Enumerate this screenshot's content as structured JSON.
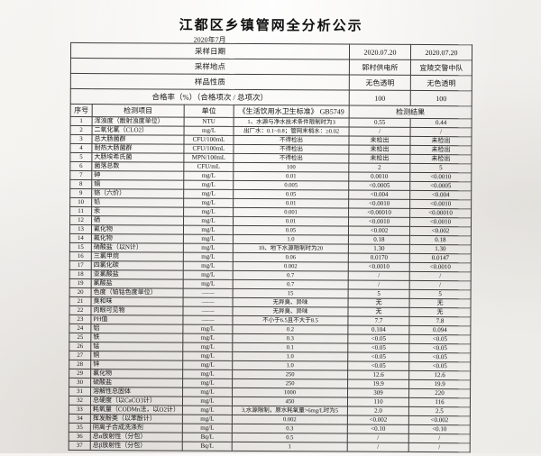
{
  "document": {
    "title": "江都区乡镇管网全分析公示",
    "subtitle": "2020年7月"
  },
  "info": {
    "rows": [
      {
        "label": "采样日期",
        "v1": "2020.07.20",
        "v2": "2020.07.20"
      },
      {
        "label": "采样地点",
        "v1": "郭村供电所",
        "v2": "宜陵交警中队"
      },
      {
        "label": "样品性质",
        "v1": "无色透明",
        "v2": "无色透明"
      },
      {
        "label": "合格率（%）（合格项次 / 总项次）",
        "v1": "100",
        "v2": "100"
      }
    ]
  },
  "table": {
    "columns": {
      "no": "序号",
      "item": "检测项目",
      "unit": "单位",
      "standard": "《生活饮用水卫生标准》 GB5749",
      "result": "检测结果"
    },
    "rows": [
      [
        "1",
        "浑浊度（散射浊度单位）",
        "NTU",
        "1、水源与净水技术条件限制时为3",
        "0.55",
        "0.44"
      ],
      [
        "2",
        "二氧化氯（CLO2）",
        "mg/L",
        "出厂水：0.1~0.8；管网末梢水：≥0.02",
        "/",
        "/"
      ],
      [
        "3",
        "总大肠菌群",
        "CFU/100mL",
        "不得检出",
        "未检出",
        "未检出"
      ],
      [
        "4",
        "耐热大肠菌群",
        "CFU/100mL",
        "不得检出",
        "未检出",
        "未检出"
      ],
      [
        "5",
        "大肠埃希氏菌",
        "MPN/100mL",
        "不得检出",
        "未检出",
        "未检出"
      ],
      [
        "6",
        "菌落总数",
        "CFU/mL",
        "100",
        "2",
        "5"
      ],
      [
        "7",
        "砷",
        "mg/L",
        "0.01",
        "0.0010",
        "<0.0010"
      ],
      [
        "8",
        "镉",
        "mg/L",
        "0.005",
        "<0.0005",
        "<0.0005"
      ],
      [
        "9",
        "铬（六价）",
        "mg/L",
        "0.05",
        "<0.004",
        "<0.004"
      ],
      [
        "10",
        "铅",
        "mg/L",
        "0.01",
        "<0.0010",
        "<0.0010"
      ],
      [
        "11",
        "汞",
        "mg/L",
        "0.001",
        "<0.00010",
        "<0.00010"
      ],
      [
        "12",
        "硒",
        "mg/L",
        "0.01",
        "<0.0010",
        "<0.0010"
      ],
      [
        "13",
        "氰化物",
        "mg/L",
        "0.05",
        "<0.002",
        "<0.002"
      ],
      [
        "14",
        "氟化物",
        "mg/L",
        "1.0",
        "0.18",
        "0.18"
      ],
      [
        "15",
        "硝酸盐（以N计）",
        "mg/L",
        "10、地下水源限制时为20",
        "1.30",
        "1.30"
      ],
      [
        "16",
        "三氯甲烷",
        "mg/L",
        "0.06",
        "0.0170",
        "0.0147"
      ],
      [
        "17",
        "四氯化碳",
        "mg/L",
        "0.002",
        "<0.0010",
        "<0.0010"
      ],
      [
        "18",
        "亚氯酸盐",
        "mg/L",
        "0.7",
        "/",
        "/"
      ],
      [
        "19",
        "氯酸盐",
        "mg/L",
        "0.7",
        "/",
        "/"
      ],
      [
        "20",
        "色度（铂钴色度单位）",
        "——",
        "15",
        "5",
        "5"
      ],
      [
        "21",
        "臭和味",
        "——",
        "无异臭、异味",
        "无",
        "无"
      ],
      [
        "22",
        "肉眼可见物",
        "——",
        "无异臭、异味",
        "无",
        "无"
      ],
      [
        "23",
        "PH值",
        "——",
        "不小于6.5且不大于8.5",
        "7.7",
        "7.8"
      ],
      [
        "24",
        "铝",
        "mg/L",
        "0.2",
        "0.104",
        "0.094"
      ],
      [
        "25",
        "铁",
        "mg/L",
        "0.3",
        "<0.05",
        "<0.05"
      ],
      [
        "26",
        "锰",
        "mg/L",
        "0.1",
        "<0.05",
        "<0.05"
      ],
      [
        "27",
        "铜",
        "mg/L",
        "1.0",
        "<0.05",
        "<0.05"
      ],
      [
        "28",
        "锌",
        "mg/L",
        "1.0",
        "<0.05",
        "<0.05"
      ],
      [
        "29",
        "氯化物",
        "mg/L",
        "250",
        "12.6",
        "12.6"
      ],
      [
        "30",
        "硫酸盐",
        "mg/L",
        "250",
        "19.9",
        "19.9"
      ],
      [
        "31",
        "溶解性总固体",
        "mg/L",
        "1000",
        "309",
        "220"
      ],
      [
        "32",
        "总硬度（以CaCO3计）",
        "mg/L",
        "450",
        "110",
        "116"
      ],
      [
        "33",
        "耗氧量（CODMn法，以O2计）",
        "mg/L",
        "3,水源限制，原水耗氧量>6mg/L时为5",
        "2.0",
        "2.5"
      ],
      [
        "34",
        "挥发酚类（以苯酚计）",
        "mg/L",
        "0.002",
        "<0.002",
        "<0.002"
      ],
      [
        "35",
        "阴离子合成洗涤剂",
        "mg/L",
        "0.3",
        "<0.10",
        "<0.10"
      ],
      [
        "36",
        "总α放射性（分包）",
        "Bq/L",
        "0.5",
        "/",
        "/"
      ],
      [
        "37",
        "总β放射性（分包）",
        "Bq/L",
        "1",
        "/",
        "/"
      ]
    ]
  }
}
